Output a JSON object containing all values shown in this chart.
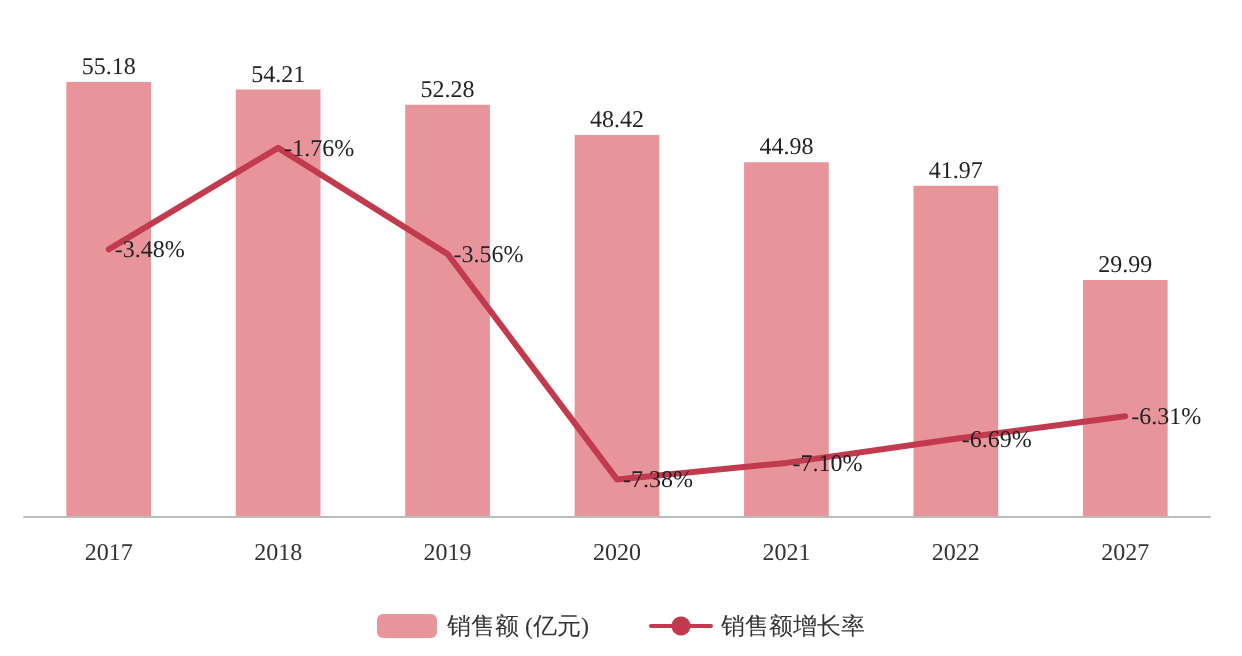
{
  "chart_data": {
    "type": "bar",
    "categories": [
      "2017",
      "2018",
      "2019",
      "2020",
      "2021",
      "2022",
      "2027"
    ],
    "series": [
      {
        "name": "销售额 (亿元)",
        "color": "#e8949b",
        "values": [
          55.18,
          54.21,
          52.28,
          48.42,
          44.98,
          41.97,
          29.99
        ],
        "value_labels": [
          "55.18",
          "54.21",
          "52.28",
          "48.42",
          "44.98",
          "41.97",
          "29.99"
        ]
      },
      {
        "name": "销售额增长率",
        "type": "line",
        "axis": "y2",
        "color": "#c23a4e",
        "values": [
          -3.48,
          -1.76,
          -3.56,
          -7.38,
          -7.1,
          -6.69,
          -6.31
        ],
        "value_labels": [
          "-3.48%",
          "-1.76%",
          "-3.56%",
          "-7.38%",
          "-7.10%",
          "-6.69%",
          "-6.31%"
        ]
      }
    ],
    "tick_labels": "x",
    "grid": false,
    "legend": "bottom",
    "marker": "none",
    "line_style": "solid"
  }
}
